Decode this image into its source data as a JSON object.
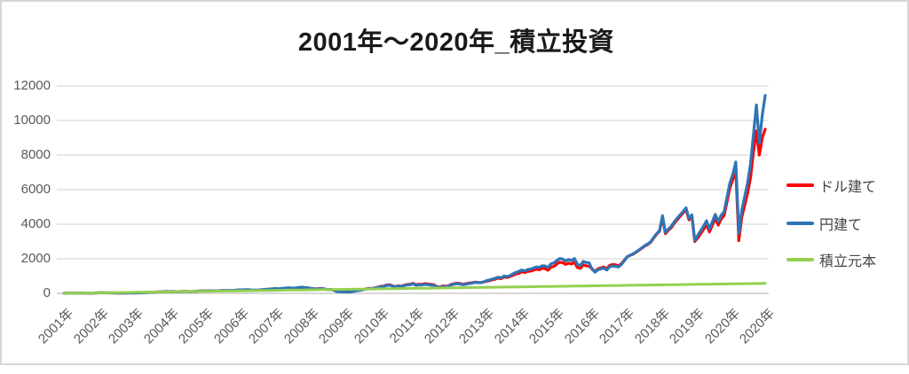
{
  "title": "2001年～2020年_積立投資",
  "legend": {
    "position": "right",
    "items": [
      {
        "label": "ドル建て",
        "color": "#FF0000"
      },
      {
        "label": "円建て",
        "color": "#2E75B6"
      },
      {
        "label": "積立元本",
        "color": "#92D050"
      }
    ]
  },
  "colors": {
    "background": "#ffffff",
    "frame_border": "#d6d6d6",
    "gridline": "#d9d9d9",
    "axis_zero_line": "#bfbfbf",
    "axis_text": "#595959",
    "title_text": "#1a1a1a",
    "series_dollar": "#FF0000",
    "series_yen": "#2E75B6",
    "series_principal": "#92D050"
  },
  "chart_data": {
    "type": "line",
    "title": "2001年～2020年_積立投資",
    "xlabel": "",
    "ylabel": "",
    "ylim": [
      0,
      12000
    ],
    "y_ticks": [
      0,
      2000,
      4000,
      6000,
      8000,
      10000,
      12000
    ],
    "grid": "horizontal",
    "legend_position": "right",
    "x_unit": "months 2001-01 .. 2020-12 (240 points)",
    "x_tick_labels": [
      "2001年",
      "2002年",
      "2003年",
      "2004年",
      "2005年",
      "2006年",
      "2007年",
      "2008年",
      "2009年",
      "2010年",
      "2011年",
      "2012年",
      "2013年",
      "2014年",
      "2015年",
      "2016年",
      "2017年",
      "2018年",
      "2019年",
      "2020年",
      "2020年"
    ],
    "series": [
      {
        "name": "ドル建て",
        "color": "#FF0000",
        "values": [
          2,
          5,
          8,
          11,
          14,
          15,
          14,
          13,
          9,
          12,
          18,
          25,
          30,
          31,
          33,
          30,
          28,
          24,
          18,
          21,
          16,
          20,
          26,
          27,
          30,
          28,
          32,
          40,
          50,
          58,
          66,
          74,
          81,
          90,
          99,
          107,
          100,
          106,
          102,
          98,
          104,
          110,
          106,
          103,
          110,
          118,
          131,
          143,
          140,
          147,
          142,
          136,
          143,
          151,
          162,
          157,
          164,
          154,
          169,
          181,
          190,
          187,
          197,
          202,
          181,
          178,
          181,
          193,
          208,
          223,
          233,
          244,
          270,
          256,
          267,
          282,
          300,
          307,
          288,
          300,
          317,
          340,
          322,
          310,
          290,
          272,
          258,
          276,
          284,
          245,
          220,
          230,
          186,
          112,
          95,
          106,
          96,
          82,
          96,
          134,
          168,
          190,
          228,
          262,
          292,
          276,
          318,
          356,
          400,
          428,
          476,
          500,
          432,
          390,
          442,
          408,
          472,
          520,
          518,
          578,
          500,
          528,
          522,
          558,
          542,
          518,
          498,
          400,
          352,
          428,
          416,
          424,
          520,
          558,
          586,
          568,
          522,
          558,
          590,
          612,
          648,
          634,
          622,
          656,
          700,
          732,
          786,
          820,
          882,
          850,
          942,
          916,
          968,
          1048,
          1114,
          1156,
          1250,
          1204,
          1272,
          1284,
          1338,
          1404,
          1360,
          1450,
          1426,
          1338,
          1516,
          1560,
          1700,
          1800,
          1774,
          1672,
          1748,
          1698,
          1800,
          1492,
          1440,
          1646,
          1596,
          1570,
          1420,
          1262,
          1420,
          1470,
          1520,
          1422,
          1618,
          1668,
          1644,
          1594,
          1718,
          1918,
          2120,
          2198,
          2268,
          2380,
          2498,
          2618,
          2740,
          2828,
          2958,
          3198,
          3418,
          3598,
          4400,
          3450,
          3650,
          3800,
          4050,
          4250,
          4450,
          4650,
          4850,
          4250,
          4450,
          3000,
          3200,
          3450,
          3700,
          4000,
          3550,
          3950,
          4350,
          3950,
          4300,
          4500,
          5300,
          6100,
          6600,
          7100,
          3050,
          4400,
          5100,
          5800,
          6700,
          8200,
          9400,
          8000,
          9000,
          9500
        ]
      },
      {
        "name": "円建て",
        "color": "#2E75B6",
        "values": [
          2,
          5,
          8,
          11,
          14,
          16,
          15,
          13,
          9,
          13,
          19,
          26,
          31,
          32,
          33,
          29,
          28,
          25,
          19,
          21,
          15,
          19,
          25,
          26,
          28,
          26,
          30,
          37,
          46,
          54,
          61,
          69,
          76,
          84,
          93,
          101,
          96,
          102,
          98,
          93,
          100,
          106,
          102,
          99,
          106,
          114,
          127,
          139,
          140,
          148,
          143,
          138,
          146,
          155,
          168,
          163,
          171,
          161,
          178,
          191,
          203,
          200,
          211,
          216,
          194,
          190,
          194,
          207,
          223,
          239,
          249,
          261,
          284,
          269,
          280,
          296,
          315,
          322,
          302,
          315,
          333,
          357,
          338,
          326,
          284,
          267,
          253,
          270,
          278,
          240,
          216,
          225,
          182,
          110,
          93,
          104,
          91,
          78,
          91,
          127,
          160,
          180,
          217,
          249,
          277,
          262,
          302,
          338,
          380,
          407,
          452,
          475,
          410,
          371,
          420,
          388,
          448,
          494,
          492,
          549,
          465,
          491,
          486,
          519,
          504,
          482,
          463,
          372,
          327,
          398,
          387,
          394,
          494,
          530,
          557,
          540,
          496,
          530,
          561,
          587,
          629,
          621,
          616,
          656,
          735,
          769,
          825,
          869,
          935,
          901,
          998,
          971,
          1026,
          1122,
          1203,
          1260,
          1350,
          1300,
          1374,
          1400,
          1459,
          1530,
          1496,
          1595,
          1583,
          1499,
          1713,
          1763,
          1904,
          2016,
          1987,
          1873,
          1958,
          1902,
          2016,
          1671,
          1613,
          1844,
          1788,
          1758,
          1392,
          1224,
          1363,
          1411,
          1459,
          1351,
          1537,
          1585,
          1562,
          1530,
          1667,
          1880,
          2120,
          2200,
          2290,
          2400,
          2520,
          2640,
          2770,
          2860,
          2990,
          3230,
          3450,
          3630,
          4490,
          3520,
          3720,
          3880,
          4130,
          4340,
          4540,
          4740,
          4950,
          4340,
          4540,
          3060,
          3360,
          3620,
          3890,
          4200,
          3730,
          4150,
          4570,
          4150,
          4520,
          4730,
          5570,
          6400,
          6900,
          7600,
          3450,
          4800,
          5600,
          6400,
          7500,
          9200,
          10900,
          8700,
          10300,
          11450
        ]
      },
      {
        "name": "積立元本",
        "color": "#92D050",
        "values_spec": {
          "type": "linear_ramp",
          "monthly_contribution": 2.4,
          "months": 240,
          "final": 576
        }
      }
    ]
  }
}
